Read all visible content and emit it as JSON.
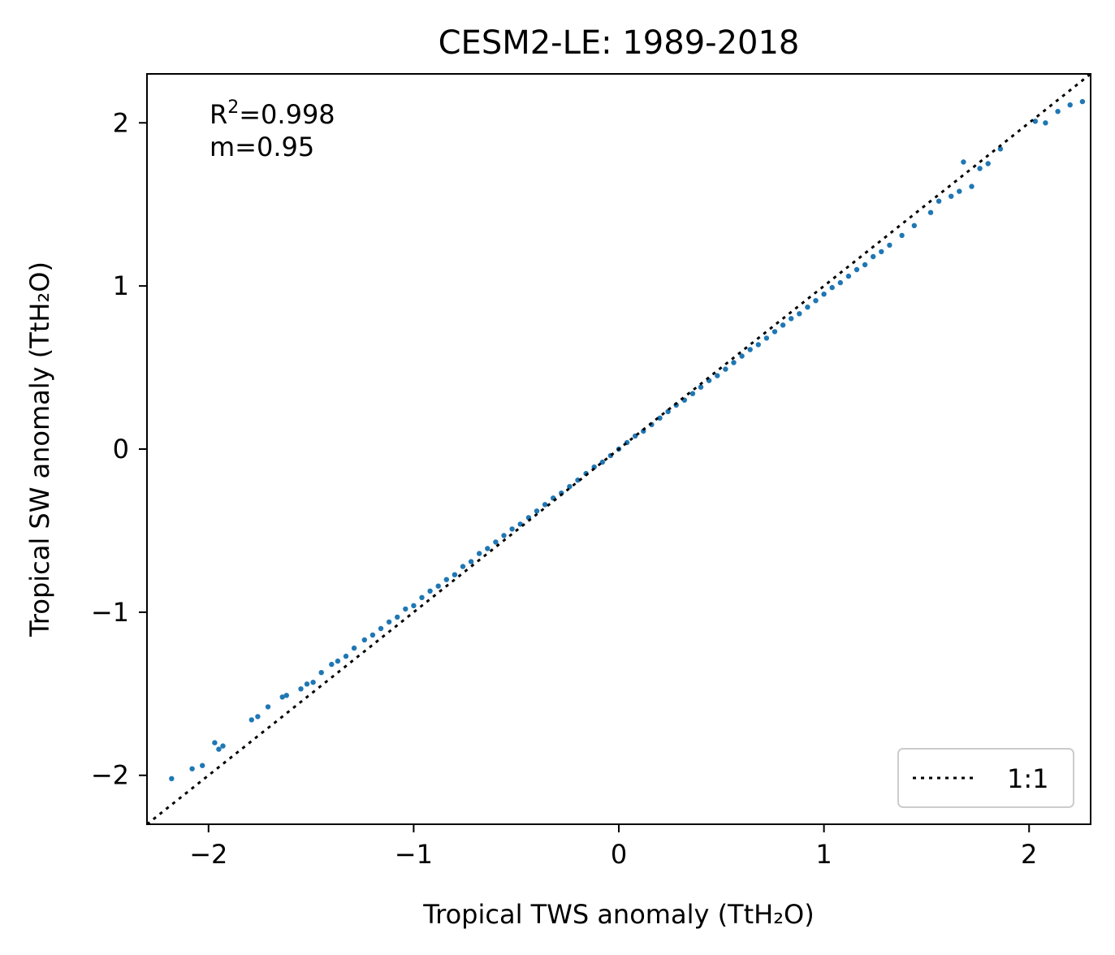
{
  "chart_data": {
    "type": "scatter",
    "title": "CESM2-LE: 1989-2018",
    "xlabel": "Tropical TWS anomaly (TtH₂O)",
    "ylabel": "Tropical SW anomaly (TtH₂O)",
    "xlim": [
      -2.3,
      2.3
    ],
    "ylim": [
      -2.3,
      2.3
    ],
    "xticks": [
      -2,
      -1,
      0,
      1,
      2
    ],
    "yticks": [
      -2,
      -1,
      0,
      1,
      2
    ],
    "xtick_labels": [
      "−2",
      "−1",
      "0",
      "1",
      "2"
    ],
    "ytick_labels": [
      "−2",
      "−1",
      "0",
      "1",
      "2"
    ],
    "grid": false,
    "annotations": {
      "r2_prefix": "R",
      "r2_sup": "2",
      "r2_value": "=0.998",
      "slope": "m=0.95"
    },
    "fit": {
      "r2": 0.998,
      "slope": 0.95
    },
    "legend": {
      "placement": "lower-right",
      "entries": [
        "1:1"
      ]
    },
    "series": [
      {
        "kind": "scatter",
        "color": "#1f77b4",
        "points": [
          [
            -2.18,
            -2.02
          ],
          [
            -2.08,
            -1.96
          ],
          [
            -2.03,
            -1.94
          ],
          [
            -1.97,
            -1.8
          ],
          [
            -1.95,
            -1.84
          ],
          [
            -1.93,
            -1.82
          ],
          [
            -1.79,
            -1.66
          ],
          [
            -1.76,
            -1.64
          ],
          [
            -1.71,
            -1.58
          ],
          [
            -1.64,
            -1.52
          ],
          [
            -1.62,
            -1.51
          ],
          [
            -1.55,
            -1.47
          ],
          [
            -1.52,
            -1.44
          ],
          [
            -1.49,
            -1.43
          ],
          [
            -1.45,
            -1.37
          ],
          [
            -1.4,
            -1.32
          ],
          [
            -1.37,
            -1.3
          ],
          [
            -1.33,
            -1.27
          ],
          [
            -1.29,
            -1.22
          ],
          [
            -1.24,
            -1.17
          ],
          [
            -1.2,
            -1.14
          ],
          [
            -1.16,
            -1.1
          ],
          [
            -1.12,
            -1.06
          ],
          [
            -1.08,
            -1.03
          ],
          [
            -1.04,
            -0.98
          ],
          [
            -1.0,
            -0.96
          ],
          [
            -0.96,
            -0.91
          ],
          [
            -0.92,
            -0.87
          ],
          [
            -0.88,
            -0.84
          ],
          [
            -0.84,
            -0.8
          ],
          [
            -0.8,
            -0.77
          ],
          [
            -0.76,
            -0.72
          ],
          [
            -0.72,
            -0.69
          ],
          [
            -0.68,
            -0.64
          ],
          [
            -0.64,
            -0.61
          ],
          [
            -0.6,
            -0.57
          ],
          [
            -0.56,
            -0.53
          ],
          [
            -0.52,
            -0.49
          ],
          [
            -0.48,
            -0.46
          ],
          [
            -0.44,
            -0.42
          ],
          [
            -0.4,
            -0.38
          ],
          [
            -0.36,
            -0.34
          ],
          [
            -0.32,
            -0.3
          ],
          [
            -0.28,
            -0.27
          ],
          [
            -0.24,
            -0.23
          ],
          [
            -0.2,
            -0.19
          ],
          [
            -0.16,
            -0.15
          ],
          [
            -0.12,
            -0.11
          ],
          [
            -0.08,
            -0.08
          ],
          [
            -0.04,
            -0.04
          ],
          [
            0.0,
            0.0
          ],
          [
            0.04,
            0.04
          ],
          [
            0.08,
            0.08
          ],
          [
            0.12,
            0.11
          ],
          [
            0.16,
            0.15
          ],
          [
            0.2,
            0.19
          ],
          [
            0.24,
            0.23
          ],
          [
            0.28,
            0.27
          ],
          [
            0.32,
            0.3
          ],
          [
            0.36,
            0.34
          ],
          [
            0.4,
            0.38
          ],
          [
            0.44,
            0.42
          ],
          [
            0.48,
            0.45
          ],
          [
            0.52,
            0.49
          ],
          [
            0.56,
            0.53
          ],
          [
            0.6,
            0.57
          ],
          [
            0.64,
            0.61
          ],
          [
            0.68,
            0.64
          ],
          [
            0.72,
            0.68
          ],
          [
            0.76,
            0.72
          ],
          [
            0.8,
            0.76
          ],
          [
            0.84,
            0.8
          ],
          [
            0.88,
            0.83
          ],
          [
            0.92,
            0.87
          ],
          [
            0.96,
            0.91
          ],
          [
            1.0,
            0.95
          ],
          [
            1.04,
            0.99
          ],
          [
            1.08,
            1.02
          ],
          [
            1.12,
            1.06
          ],
          [
            1.16,
            1.1
          ],
          [
            1.2,
            1.13
          ],
          [
            1.24,
            1.18
          ],
          [
            1.28,
            1.21
          ],
          [
            1.32,
            1.25
          ],
          [
            1.38,
            1.31
          ],
          [
            1.44,
            1.37
          ],
          [
            1.52,
            1.45
          ],
          [
            1.56,
            1.52
          ],
          [
            1.62,
            1.55
          ],
          [
            1.66,
            1.58
          ],
          [
            1.68,
            1.76
          ],
          [
            1.72,
            1.61
          ],
          [
            1.76,
            1.72
          ],
          [
            1.8,
            1.75
          ],
          [
            1.86,
            1.84
          ],
          [
            2.03,
            2.01
          ],
          [
            2.08,
            2.0
          ],
          [
            2.14,
            2.07
          ],
          [
            2.2,
            2.11
          ],
          [
            2.26,
            2.13
          ]
        ]
      },
      {
        "kind": "reference-line",
        "name": "1:1",
        "color": "#000000",
        "from": [
          -2.3,
          -2.3
        ],
        "to": [
          2.3,
          2.3
        ]
      }
    ]
  }
}
